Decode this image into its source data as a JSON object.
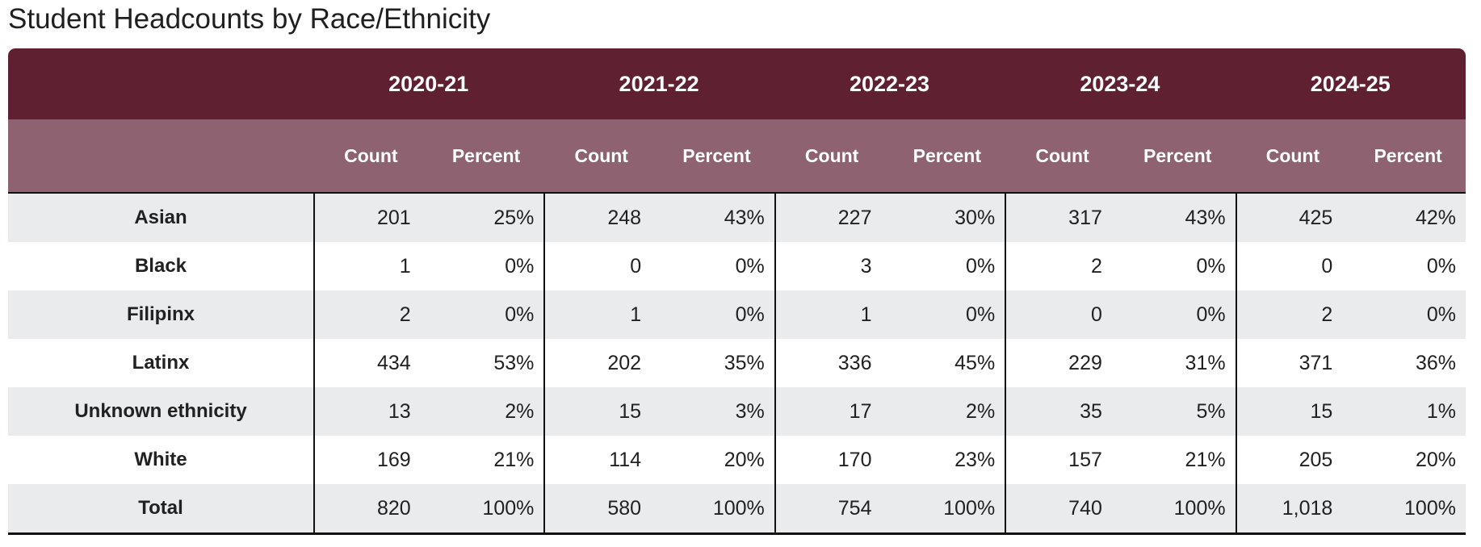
{
  "title": "Student Headcounts by Race/Ethnicity",
  "columns": {
    "years": [
      "2020-21",
      "2021-22",
      "2022-23",
      "2023-24",
      "2024-25"
    ],
    "count_label": "Count",
    "percent_label": "Percent"
  },
  "rows": [
    {
      "label": "Asian",
      "values": [
        "201",
        "25%",
        "248",
        "43%",
        "227",
        "30%",
        "317",
        "43%",
        "425",
        "42%"
      ]
    },
    {
      "label": "Black",
      "values": [
        "1",
        "0%",
        "0",
        "0%",
        "3",
        "0%",
        "2",
        "0%",
        "0",
        "0%"
      ]
    },
    {
      "label": "Filipinx",
      "values": [
        "2",
        "0%",
        "1",
        "0%",
        "1",
        "0%",
        "0",
        "0%",
        "2",
        "0%"
      ]
    },
    {
      "label": "Latinx",
      "values": [
        "434",
        "53%",
        "202",
        "35%",
        "336",
        "45%",
        "229",
        "31%",
        "371",
        "36%"
      ]
    },
    {
      "label": "Unknown ethnicity",
      "values": [
        "13",
        "2%",
        "15",
        "3%",
        "17",
        "2%",
        "35",
        "5%",
        "15",
        "1%"
      ]
    },
    {
      "label": "White",
      "values": [
        "169",
        "21%",
        "114",
        "20%",
        "170",
        "23%",
        "157",
        "21%",
        "205",
        "20%"
      ]
    },
    {
      "label": "Total",
      "values": [
        "820",
        "100%",
        "580",
        "100%",
        "754",
        "100%",
        "740",
        "100%",
        "1,018",
        "100%"
      ]
    }
  ],
  "colors": {
    "header_bg": "#5f2132",
    "subheader_bg": "#8e6270",
    "row_alt_bg": "#eaebed",
    "row_bg": "#ffffff",
    "border": "#111111",
    "header_text": "#ffffff",
    "body_text": "#212121"
  },
  "chart_data": {
    "type": "table",
    "title": "Student Headcounts by Race/Ethnicity",
    "column_groups": [
      "2020-21",
      "2021-22",
      "2022-23",
      "2023-24",
      "2024-25"
    ],
    "sub_columns": [
      "Count",
      "Percent"
    ],
    "row_labels": [
      "Asian",
      "Black",
      "Filipinx",
      "Latinx",
      "Unknown ethnicity",
      "White",
      "Total"
    ],
    "counts": {
      "2020-21": [
        201,
        1,
        2,
        434,
        13,
        169,
        820
      ],
      "2021-22": [
        248,
        0,
        1,
        202,
        15,
        114,
        580
      ],
      "2022-23": [
        227,
        3,
        1,
        336,
        17,
        170,
        754
      ],
      "2023-24": [
        317,
        2,
        0,
        229,
        35,
        157,
        740
      ],
      "2024-25": [
        425,
        0,
        2,
        371,
        15,
        205,
        1018
      ]
    },
    "percents": {
      "2020-21": [
        25,
        0,
        0,
        53,
        2,
        21,
        100
      ],
      "2021-22": [
        43,
        0,
        0,
        35,
        3,
        20,
        100
      ],
      "2022-23": [
        30,
        0,
        0,
        45,
        2,
        23,
        100
      ],
      "2023-24": [
        43,
        0,
        0,
        31,
        5,
        21,
        100
      ],
      "2024-25": [
        42,
        0,
        0,
        36,
        1,
        20,
        100
      ]
    }
  }
}
